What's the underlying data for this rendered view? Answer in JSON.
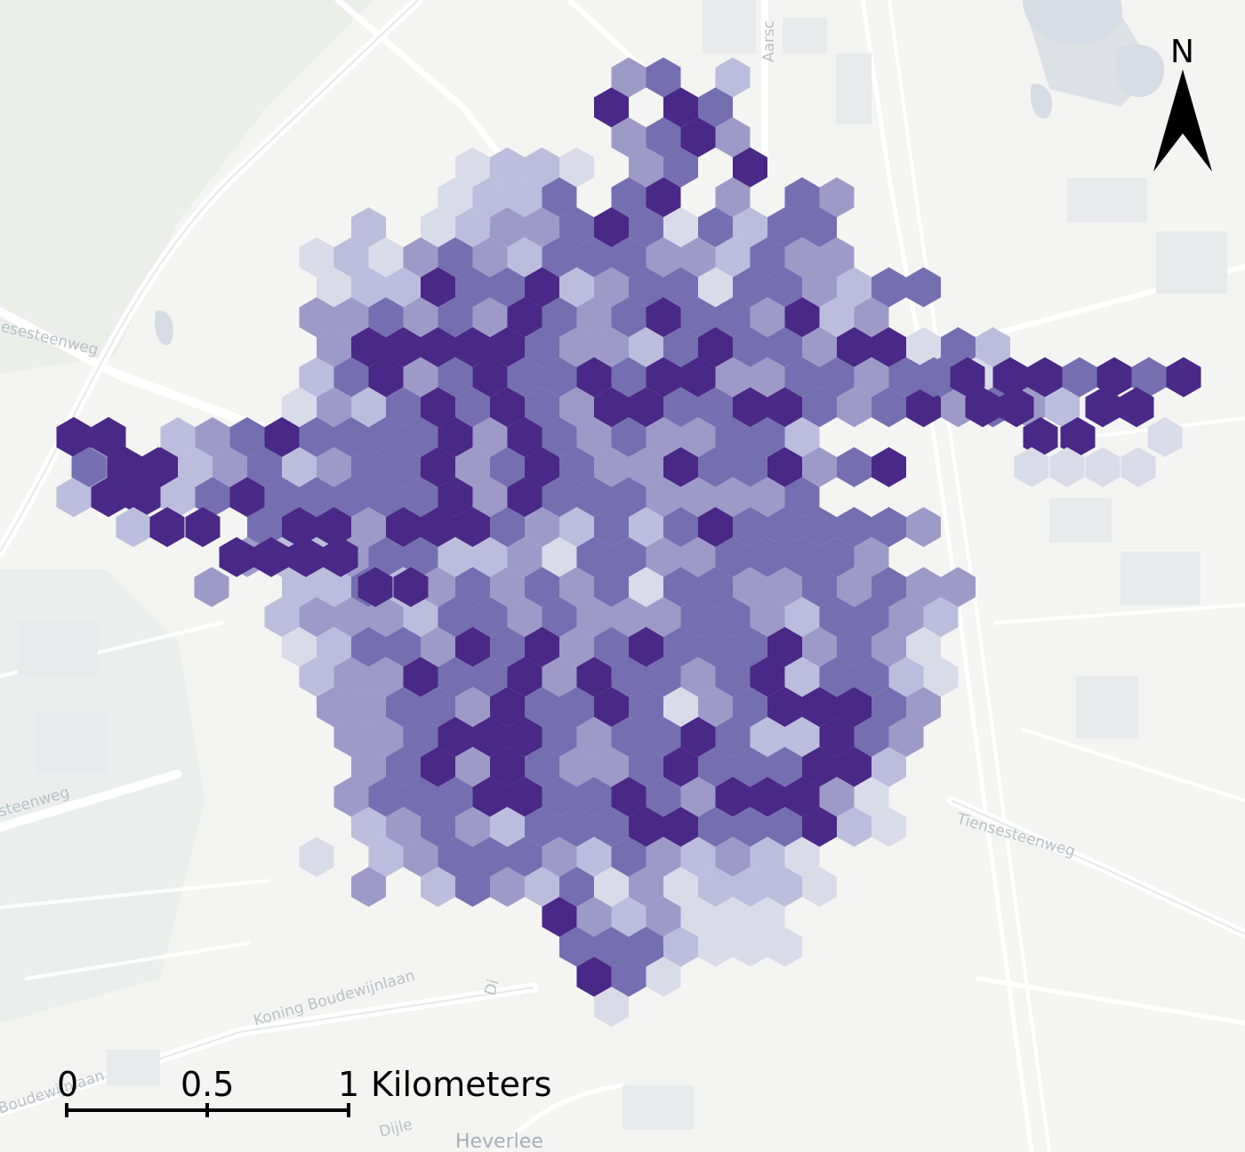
{
  "basemap": {
    "road_labels": [
      "Aarsc",
      "esesteenweg",
      "steenweg",
      "Tiensesteenweg",
      "Koning Boudewijnlaan",
      "Boudewijnlaan",
      "Dijle",
      "Di"
    ],
    "place_labels": [
      "Heverlee"
    ]
  },
  "north_arrow": {
    "letter": "N"
  },
  "scale_bar": {
    "ticks": [
      "0",
      "0.5",
      "1"
    ],
    "unit": "Kilometers"
  },
  "hexbin": {
    "colors": [
      "#d9dbe9",
      "#bcbddc",
      "#9e9ac8",
      "#756fb1",
      "#4a2887"
    ],
    "rows": [
      "........*****.........................",
      ".......*..***.........................",
      ".....***.*........................................"
    ]
  }
}
